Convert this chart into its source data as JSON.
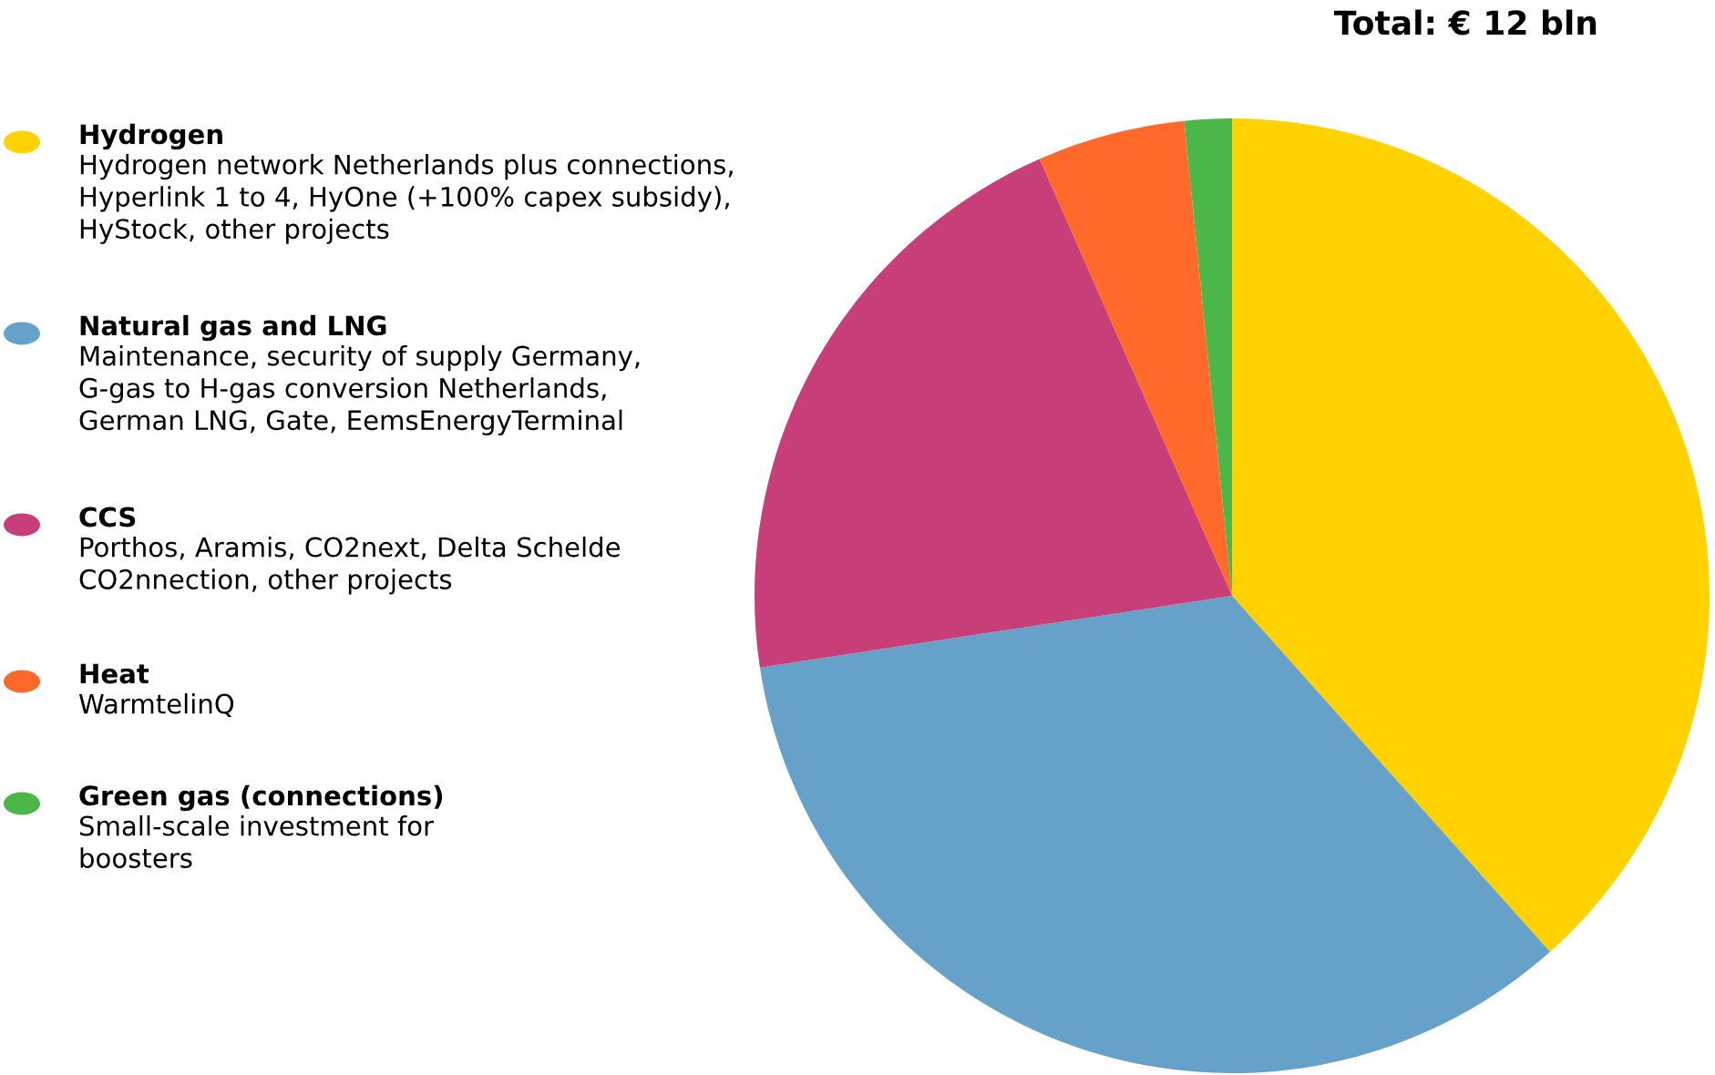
{
  "chart_data": {
    "type": "pie",
    "title": "Total: € 12 bln",
    "categories": [
      "Hydrogen",
      "Natural gas and LNG",
      "CCS",
      "Heat",
      "Green gas (connections)"
    ],
    "values": [
      38.4,
      34.2,
      20.8,
      5.0,
      1.6
    ],
    "colors": [
      "#ffd200",
      "#65a1c9",
      "#c83e78",
      "#ff6a2b",
      "#4bb749"
    ],
    "legend": "left",
    "annotations": [
      "Hydrogen network Netherlands plus connections,\nHyperlink 1 to 4, HyOne (+100% capex subsidy),\nHyStock, other projects",
      "Maintenance, security of supply Germany,\nG-gas to H-gas conversion Netherlands,\nGerman LNG, Gate, EemsEnergyTerminal",
      "Porthos, Aramis, CO2next, Delta Schelde\nCO2nnection, other projects",
      "WarmtelinQ",
      "Small-scale investment for\nboosters"
    ]
  }
}
